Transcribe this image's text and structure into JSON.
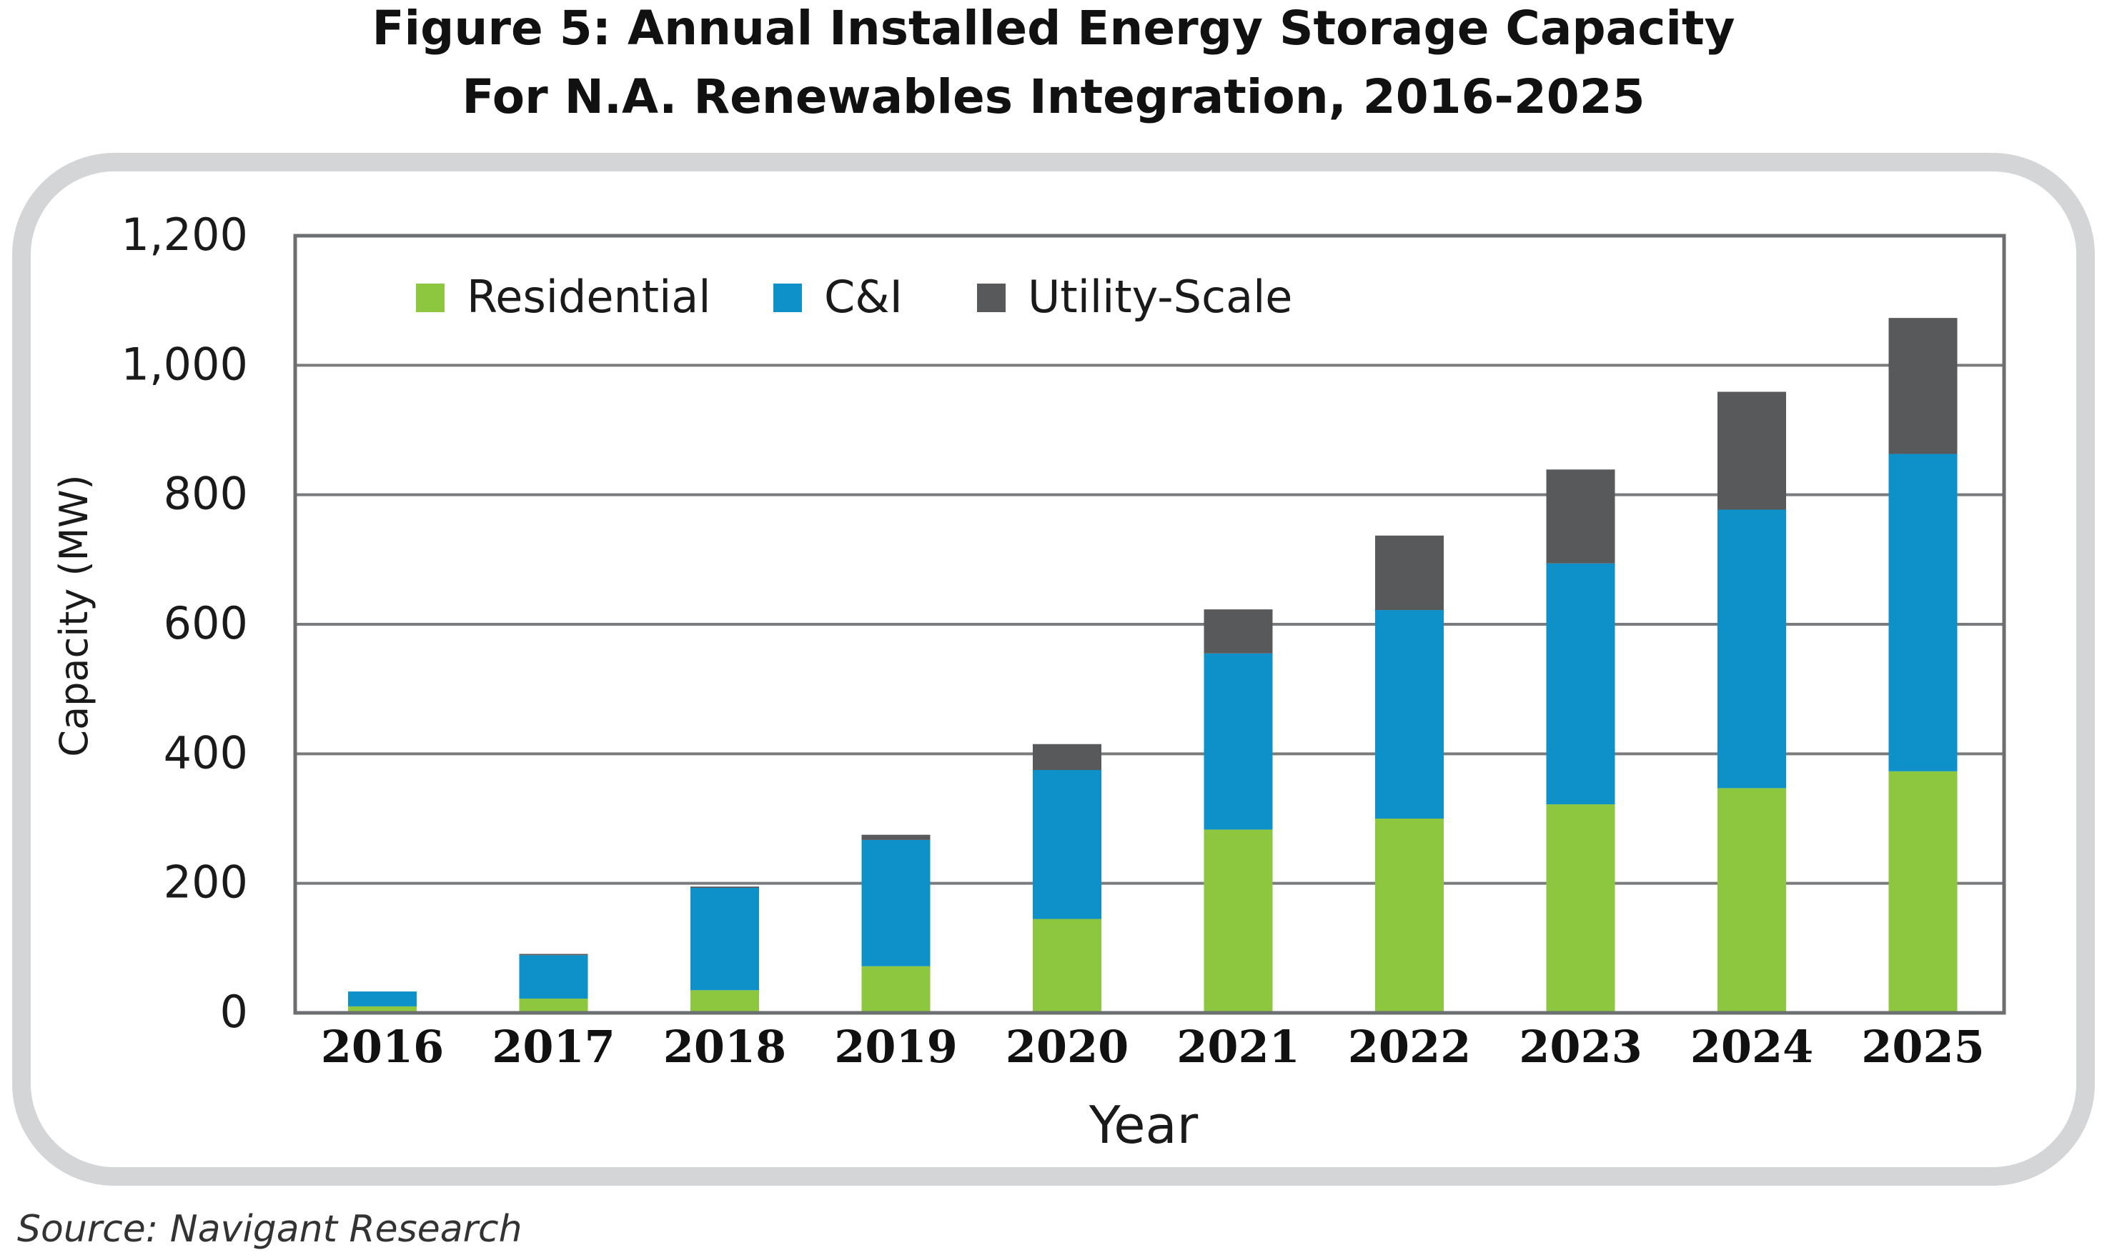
{
  "figure": {
    "title_line1": "Figure 5: Annual Installed Energy Storage Capacity",
    "title_line2": "For N.A. Renewables Integration, 2016-2025",
    "source": "Source: Navigant Research"
  },
  "chart_data": {
    "type": "bar",
    "stacked": true,
    "xlabel": "Year",
    "ylabel": "Capacity (MW)",
    "ylim": [
      0,
      1200
    ],
    "yticks": [
      0,
      200,
      400,
      600,
      800,
      1000,
      1200
    ],
    "ytick_labels": [
      "0",
      "200",
      "400",
      "600",
      "800",
      "1,000",
      "1,200"
    ],
    "grid": true,
    "legend_position": "top-left",
    "categories": [
      "2016",
      "2017",
      "2018",
      "2019",
      "2020",
      "2021",
      "2022",
      "2023",
      "2024",
      "2025"
    ],
    "series": [
      {
        "name": "Residential",
        "color": "#8dc63f",
        "values": [
          10,
          22,
          35,
          72,
          145,
          283,
          300,
          322,
          347,
          373
        ]
      },
      {
        "name": "C&I",
        "color": "#0d91c8",
        "values": [
          23,
          67,
          158,
          195,
          230,
          272,
          322,
          372,
          430,
          490
        ]
      },
      {
        "name": "Utility-Scale",
        "color": "#58595b",
        "values": [
          0,
          2,
          2,
          8,
          40,
          68,
          115,
          145,
          182,
          210
        ]
      }
    ]
  }
}
